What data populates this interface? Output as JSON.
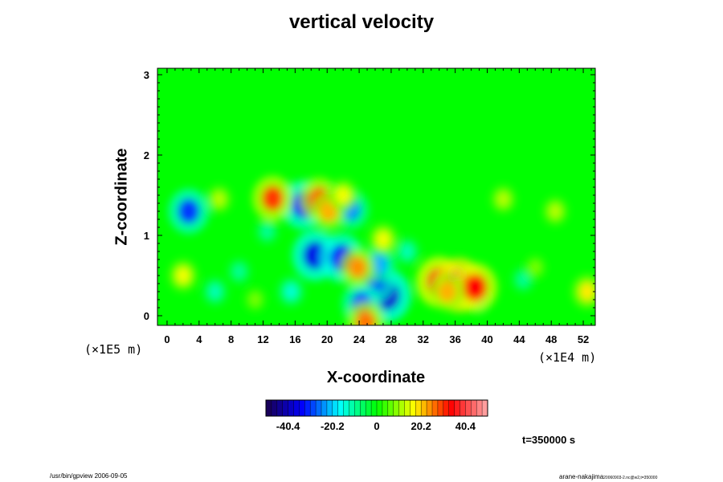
{
  "chart_data": {
    "type": "heatmap",
    "title": "vertical velocity",
    "xlabel": "X-coordinate",
    "ylabel": "Z-coordinate",
    "x_unit": "(×1E4 m)",
    "y_unit": "(×1E5 m)",
    "x_ticks": [
      "0",
      "4",
      "8",
      "12",
      "16",
      "20",
      "24",
      "28",
      "32",
      "36",
      "40",
      "44",
      "48",
      "52"
    ],
    "x_tick_values": [
      0,
      4,
      8,
      12,
      16,
      20,
      24,
      28,
      32,
      36,
      40,
      44,
      48,
      52
    ],
    "y_ticks": [
      "0",
      "1",
      "2",
      "3"
    ],
    "y_tick_values": [
      0,
      1,
      2,
      3
    ],
    "xlim": [
      -1.2,
      53.5
    ],
    "ylim": [
      -0.12,
      3.08
    ],
    "grid": false,
    "colorbar": {
      "ticks": [
        "-40.4",
        "-20.2",
        "0",
        "20.2",
        "40.4"
      ],
      "tick_values": [
        -40.4,
        -20.2,
        0,
        20.2,
        40.4
      ],
      "range": [
        -50.5,
        50.5
      ],
      "colors": [
        "#1a004d",
        "#0000ff",
        "#00ffff",
        "#00ff00",
        "#ffff00",
        "#ff0000",
        "#ffaaaa"
      ]
    },
    "background_value": 0,
    "features": [
      {
        "x": 27.5,
        "z": 0.25,
        "value": -38
      },
      {
        "x": 26.0,
        "z": 0.45,
        "value": -30
      },
      {
        "x": 26.5,
        "z": 0.65,
        "value": -22
      },
      {
        "x": 24.3,
        "z": 0.15,
        "value": -28
      },
      {
        "x": 17.0,
        "z": 1.38,
        "value": -34
      },
      {
        "x": 18.5,
        "z": 0.75,
        "value": -36
      },
      {
        "x": 21.8,
        "z": 0.72,
        "value": -34
      },
      {
        "x": 20.5,
        "z": 1.38,
        "value": -26
      },
      {
        "x": 2.7,
        "z": 1.3,
        "value": -30
      },
      {
        "x": 23.0,
        "z": 1.32,
        "value": -24
      },
      {
        "x": 15.5,
        "z": 0.3,
        "value": -14
      },
      {
        "x": 9.0,
        "z": 0.55,
        "value": -10
      },
      {
        "x": 38.8,
        "z": 0.22,
        "value": -14
      },
      {
        "x": 44.5,
        "z": 0.45,
        "value": -10
      },
      {
        "x": 6.0,
        "z": 0.3,
        "value": -12
      },
      {
        "x": 30.0,
        "z": 0.8,
        "value": -12
      },
      {
        "x": 12.5,
        "z": 1.05,
        "value": -10
      },
      {
        "x": 34.0,
        "z": 0.42,
        "value": 36
      },
      {
        "x": 36.5,
        "z": 0.38,
        "value": 40
      },
      {
        "x": 38.5,
        "z": 0.35,
        "value": 34
      },
      {
        "x": 35.0,
        "z": 0.3,
        "value": 22
      },
      {
        "x": 13.2,
        "z": 1.46,
        "value": 30
      },
      {
        "x": 19.0,
        "z": 1.45,
        "value": 28
      },
      {
        "x": 20.2,
        "z": 1.3,
        "value": 22
      },
      {
        "x": 23.8,
        "z": 0.6,
        "value": 24
      },
      {
        "x": 27.0,
        "z": 0.95,
        "value": 16
      },
      {
        "x": 2.0,
        "z": 0.5,
        "value": 16
      },
      {
        "x": 6.5,
        "z": 1.45,
        "value": 12
      },
      {
        "x": 22.0,
        "z": 1.5,
        "value": 16
      },
      {
        "x": 42.0,
        "z": 1.45,
        "value": 12
      },
      {
        "x": 48.5,
        "z": 1.3,
        "value": 12
      },
      {
        "x": 52.5,
        "z": 0.3,
        "value": 18
      },
      {
        "x": 24.8,
        "z": -0.08,
        "value": 26
      },
      {
        "x": 11.0,
        "z": 0.2,
        "value": 8
      },
      {
        "x": 46.0,
        "z": 0.6,
        "value": 8
      }
    ]
  },
  "annotations": {
    "time": "t=350000 s",
    "footer_left": "/usr/bin/gpview 2006-09-05",
    "footer_right_main": "arane-nakajima",
    "footer_right_sub": "20060903-2.nc@w2,t=350000"
  }
}
